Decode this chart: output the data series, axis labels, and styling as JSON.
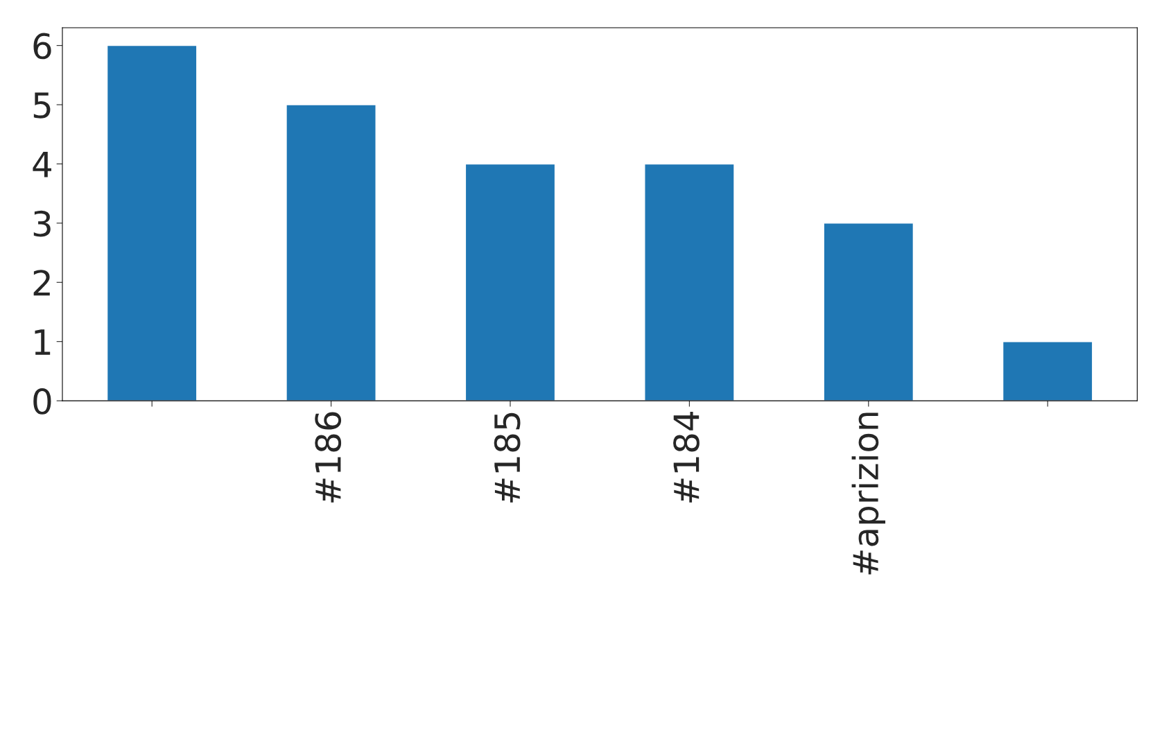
{
  "chart_data": {
    "type": "bar",
    "categories": [
      null,
      "#186",
      "#185",
      "#184",
      "#aprizion",
      null
    ],
    "values": [
      6,
      5,
      4,
      4,
      3,
      1
    ],
    "color": "#1f77b4",
    "ylim": [
      0,
      6.3
    ],
    "yticks": [
      0,
      1,
      2,
      3,
      4,
      5,
      6
    ],
    "grid": false,
    "legend": false
  }
}
